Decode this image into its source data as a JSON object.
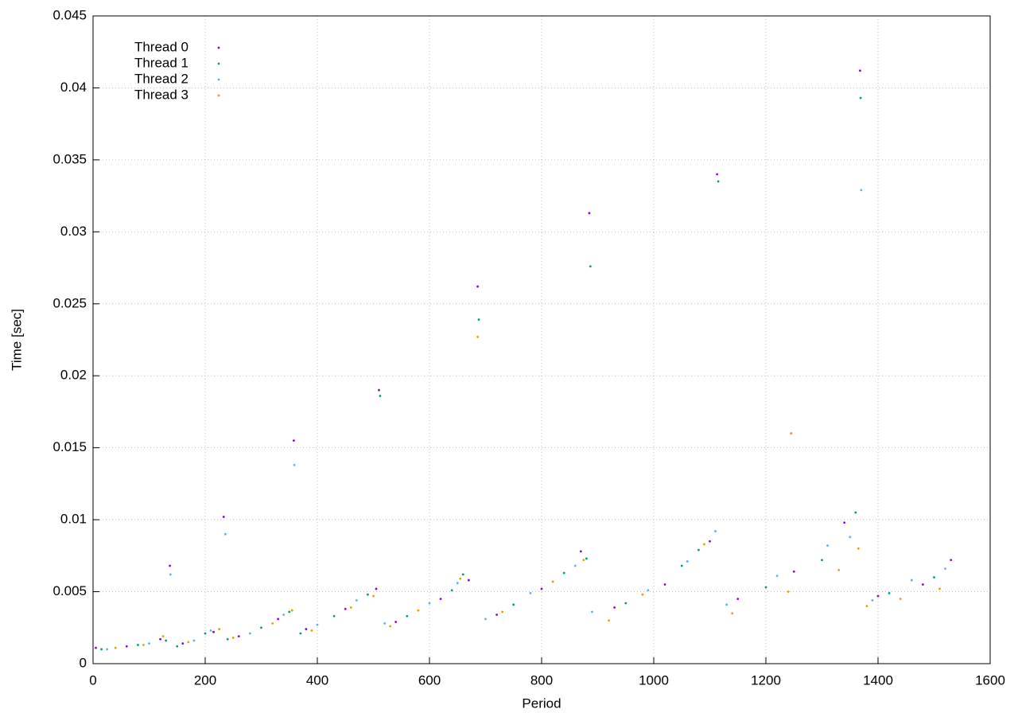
{
  "chart_data": {
    "type": "scatter",
    "xlabel": "Period",
    "ylabel": "Time [sec]",
    "xlim": [
      0,
      1600
    ],
    "xticks": [
      0,
      200,
      400,
      600,
      800,
      1000,
      1200,
      1400,
      1600
    ],
    "ylim": [
      0,
      0.045
    ],
    "yticks": [
      0,
      0.005,
      0.01,
      0.015,
      0.02,
      0.025,
      0.03,
      0.035,
      0.04,
      0.045
    ],
    "grid": true,
    "legend": "upper-left",
    "series": [
      {
        "name": "Thread 0",
        "color": "#9400d3",
        "x": [
          5,
          60,
          120,
          137,
          160,
          215,
          233,
          260,
          330,
          358,
          380,
          450,
          505,
          510,
          540,
          620,
          670,
          686,
          720,
          800,
          870,
          885,
          930,
          1020,
          1100,
          1113,
          1150,
          1250,
          1340,
          1368,
          1400,
          1480,
          1530
        ],
        "values": [
          0.0011,
          0.0012,
          0.0017,
          0.0068,
          0.0014,
          0.0022,
          0.0102,
          0.0019,
          0.0031,
          0.0155,
          0.0024,
          0.0038,
          0.0052,
          0.019,
          0.0029,
          0.0045,
          0.0058,
          0.0262,
          0.0034,
          0.0052,
          0.0078,
          0.0313,
          0.0039,
          0.0055,
          0.0085,
          0.034,
          0.0045,
          0.0064,
          0.0098,
          0.0412,
          0.0047,
          0.0055,
          0.0072
        ]
      },
      {
        "name": "Thread 1",
        "color": "#009e73",
        "x": [
          15,
          80,
          130,
          150,
          200,
          240,
          300,
          350,
          370,
          430,
          490,
          512,
          560,
          640,
          660,
          688,
          750,
          840,
          880,
          887,
          950,
          1050,
          1080,
          1115,
          1200,
          1300,
          1360,
          1369,
          1420,
          1500
        ],
        "values": [
          0.001,
          0.0013,
          0.0016,
          0.0012,
          0.0021,
          0.0017,
          0.0025,
          0.0036,
          0.0021,
          0.0033,
          0.0048,
          0.0186,
          0.0033,
          0.0051,
          0.0062,
          0.0239,
          0.0041,
          0.0063,
          0.0073,
          0.0276,
          0.0042,
          0.0068,
          0.0079,
          0.0335,
          0.0053,
          0.0072,
          0.0105,
          0.0393,
          0.0049,
          0.006
        ]
      },
      {
        "name": "Thread 2",
        "color": "#56b4e9",
        "x": [
          25,
          100,
          138,
          180,
          210,
          236,
          280,
          340,
          359,
          400,
          470,
          520,
          600,
          650,
          700,
          780,
          860,
          890,
          990,
          1060,
          1110,
          1130,
          1220,
          1310,
          1350,
          1370,
          1390,
          1460,
          1520
        ],
        "values": [
          0.001,
          0.0014,
          0.0062,
          0.0016,
          0.0023,
          0.009,
          0.0021,
          0.0034,
          0.0138,
          0.0027,
          0.0044,
          0.0028,
          0.0042,
          0.0056,
          0.0031,
          0.0049,
          0.0068,
          0.0036,
          0.0051,
          0.0071,
          0.0092,
          0.0041,
          0.0061,
          0.0082,
          0.0088,
          0.0329,
          0.0044,
          0.0058,
          0.0066
        ]
      },
      {
        "name": "Thread 3",
        "color": "#e69f00",
        "x": [
          40,
          90,
          125,
          170,
          225,
          250,
          320,
          355,
          390,
          460,
          500,
          530,
          580,
          655,
          686,
          730,
          820,
          875,
          920,
          980,
          1090,
          1140,
          1240,
          1245,
          1330,
          1365,
          1380,
          1440,
          1510
        ],
        "values": [
          0.0011,
          0.0013,
          0.0019,
          0.0015,
          0.0024,
          0.0018,
          0.0028,
          0.0037,
          0.0023,
          0.0039,
          0.0047,
          0.0026,
          0.0037,
          0.0059,
          0.0227,
          0.0036,
          0.0057,
          0.0072,
          0.003,
          0.0048,
          0.0083,
          0.0035,
          0.005,
          0.016,
          0.0065,
          0.008,
          0.004,
          0.0045,
          0.0052
        ]
      }
    ]
  }
}
